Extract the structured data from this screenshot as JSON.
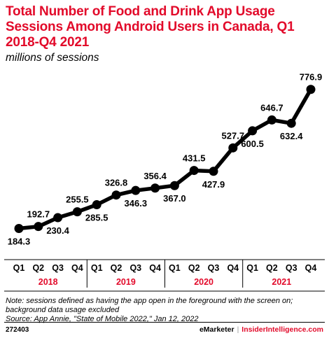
{
  "chart_data": {
    "type": "line",
    "title": "Total Number of Food and Drink App Usage Sessions Among Android Users in Canada, Q1 2018-Q4 2021",
    "subtitle": "millions of sessions",
    "categories": [
      "Q1",
      "Q2",
      "Q3",
      "Q4",
      "Q1",
      "Q2",
      "Q3",
      "Q4",
      "Q1",
      "Q2",
      "Q3",
      "Q4",
      "Q1",
      "Q2",
      "Q3",
      "Q4"
    ],
    "year_groups": [
      "2018",
      "2019",
      "2020",
      "2021"
    ],
    "values": [
      184.3,
      192.7,
      230.4,
      255.5,
      285.5,
      326.8,
      346.3,
      356.4,
      367.0,
      431.5,
      427.9,
      527.7,
      600.5,
      646.7,
      632.4,
      776.9
    ],
    "value_labels": [
      "184.3",
      "192.7",
      "230.4",
      "255.5",
      "285.5",
      "326.8",
      "346.3",
      "356.4",
      "367.0",
      "431.5",
      "427.9",
      "527.7",
      "600.5",
      "646.7",
      "632.4",
      "776.9"
    ],
    "label_side": [
      "below",
      "above",
      "below",
      "above",
      "below",
      "above",
      "below",
      "above",
      "below",
      "above",
      "below",
      "above",
      "below",
      "above",
      "below",
      "above"
    ],
    "ylim": [
      150,
      800
    ],
    "grid": false,
    "line_color": "#000000",
    "accent_color": "#e20a2a"
  },
  "notes": {
    "line1": "Note: sessions defined as having the app open in the foreground with the screen on;",
    "line2": "background data usage excluded",
    "source": "Source: App Annie, \"State of Mobile 2022,\" Jan 12, 2022"
  },
  "footer": {
    "chart_id": "272403",
    "brand_left": "eMarketer",
    "separator": "|",
    "brand_right": "InsiderIntelligence.com"
  }
}
